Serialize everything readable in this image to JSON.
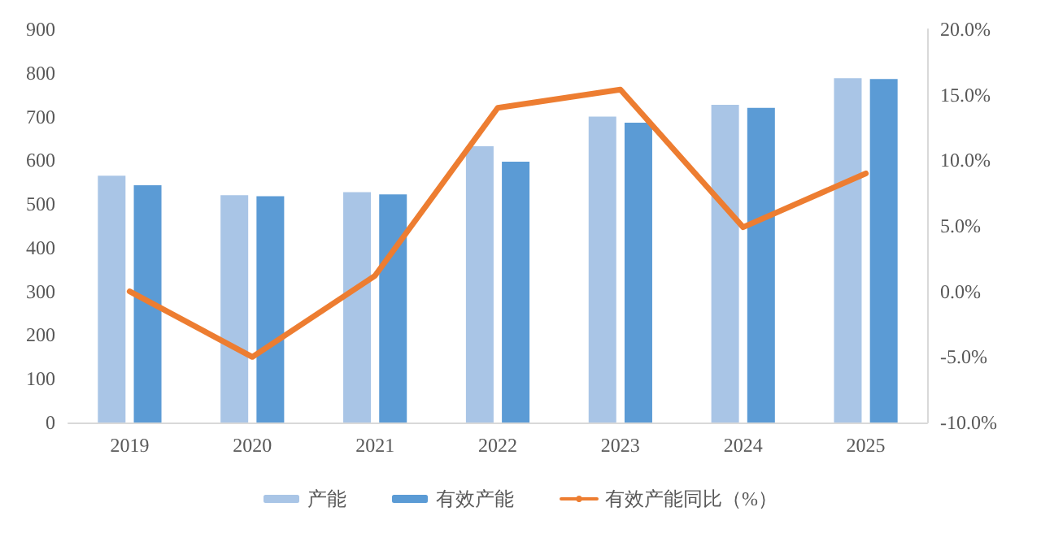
{
  "chart_data": {
    "type": "bar",
    "categories": [
      "2019",
      "2020",
      "2021",
      "2022",
      "2023",
      "2024",
      "2025"
    ],
    "series": [
      {
        "name": "产能",
        "color": "#a9c5e6",
        "values": [
          565,
          520,
          527,
          632,
          700,
          727,
          788
        ]
      },
      {
        "name": "有效产能",
        "color": "#5b9bd5",
        "values": [
          543,
          518,
          522,
          597,
          686,
          720,
          786
        ]
      },
      {
        "name": "有效产能同比（%）",
        "type": "line",
        "axis": "y2",
        "color": "#ed7d31",
        "values": [
          0.0,
          -5.0,
          1.2,
          14.0,
          15.4,
          4.9,
          9.0
        ]
      }
    ],
    "ylim": [
      0,
      900
    ],
    "yticks": [
      0,
      100,
      200,
      300,
      400,
      500,
      600,
      700,
      800,
      900
    ],
    "y2lim": [
      -10,
      20
    ],
    "y2ticks": [
      {
        "value": -10,
        "label": "-10.0%"
      },
      {
        "value": -5,
        "label": "-5.0%"
      },
      {
        "value": 0,
        "label": "0.0%"
      },
      {
        "value": 5,
        "label": "5.0%"
      },
      {
        "value": 10,
        "label": "10.0%"
      },
      {
        "value": 15,
        "label": "15.0%"
      },
      {
        "value": 20,
        "label": "20.0%"
      }
    ],
    "grid": false,
    "legend": "bottom",
    "marker": "none",
    "line_style": "solid"
  }
}
